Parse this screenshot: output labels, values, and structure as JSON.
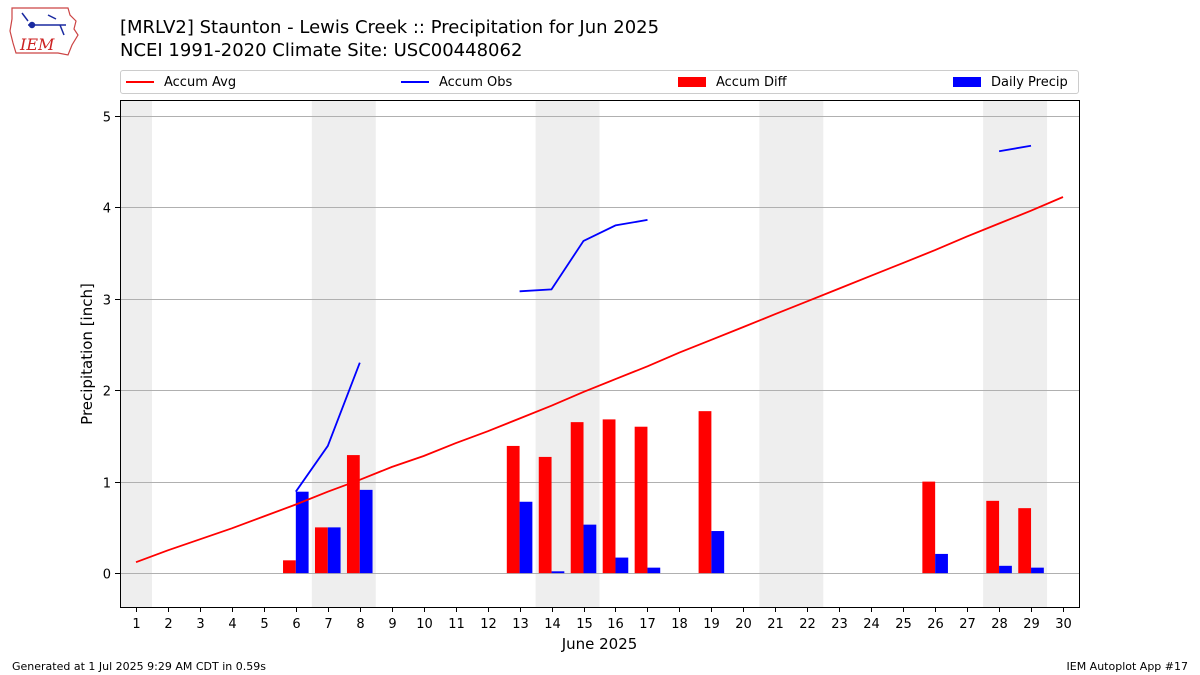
{
  "logo": {
    "text": "IEM"
  },
  "header": {
    "title": "[MRLV2] Staunton - Lewis Creek :: Precipitation for Jun 2025",
    "subtitle": "NCEI 1991-2020 Climate Site: USC00448062"
  },
  "legend": {
    "items": [
      {
        "label": "Accum Avg",
        "kind": "line",
        "color": "#ff0000"
      },
      {
        "label": "Accum Obs",
        "kind": "line",
        "color": "#0000ff"
      },
      {
        "label": "Accum Diff",
        "kind": "patch",
        "color": "#ff0000"
      },
      {
        "label": "Daily Precip",
        "kind": "patch",
        "color": "#0000ff"
      }
    ]
  },
  "chart_data": {
    "type": "bar",
    "xlabel": "June 2025",
    "ylabel": "Precipitation [inch]",
    "ylim": [
      -0.37,
      5.17
    ],
    "xlim": [
      0.5,
      30.5
    ],
    "yticks": [
      0,
      1,
      2,
      3,
      4,
      5
    ],
    "x": [
      1,
      2,
      3,
      4,
      5,
      6,
      7,
      8,
      9,
      10,
      11,
      12,
      13,
      14,
      15,
      16,
      17,
      18,
      19,
      20,
      21,
      22,
      23,
      24,
      25,
      26,
      27,
      28,
      29,
      30
    ],
    "weekend_shading": [
      [
        0.5,
        1.5
      ],
      [
        6.5,
        8.5
      ],
      [
        13.5,
        15.5
      ],
      [
        20.5,
        22.5
      ],
      [
        27.5,
        29.5
      ]
    ],
    "grid": true,
    "colors": {
      "accum_avg": "#ff0000",
      "accum_obs": "#0000ff",
      "accum_diff": "#ff0000",
      "daily_precip": "#0000ff",
      "shading": "#eeeeee"
    },
    "series": [
      {
        "name": "Accum Avg",
        "type": "line",
        "values": [
          0.12,
          0.25,
          0.37,
          0.49,
          0.62,
          0.75,
          0.89,
          1.02,
          1.16,
          1.28,
          1.42,
          1.55,
          1.69,
          1.83,
          1.98,
          2.12,
          2.26,
          2.41,
          2.55,
          2.69,
          2.83,
          2.97,
          3.11,
          3.25,
          3.39,
          3.53,
          3.68,
          3.82,
          3.96,
          4.11
        ]
      },
      {
        "name": "Accum Obs",
        "type": "line",
        "values": [
          null,
          null,
          null,
          null,
          null,
          0.89,
          1.39,
          2.3,
          null,
          null,
          null,
          null,
          3.08,
          3.1,
          3.63,
          3.8,
          3.86,
          null,
          null,
          null,
          null,
          null,
          null,
          null,
          null,
          null,
          null,
          4.61,
          4.67,
          null
        ]
      },
      {
        "name": "Accum Diff",
        "type": "bar",
        "values": [
          0,
          0,
          0,
          0,
          0,
          0.14,
          0.5,
          1.29,
          0,
          0,
          0,
          0,
          1.39,
          1.27,
          1.65,
          1.68,
          1.6,
          0,
          1.77,
          0,
          0,
          0,
          0,
          0,
          0,
          1.0,
          0,
          0.79,
          0.71,
          0
        ]
      },
      {
        "name": "Daily Precip",
        "type": "bar",
        "values": [
          0,
          0,
          0,
          0,
          0,
          0.89,
          0.5,
          0.91,
          0,
          0,
          0,
          0,
          0.78,
          0.02,
          0.53,
          0.17,
          0.06,
          0,
          0.46,
          0,
          0,
          0,
          0,
          0,
          0,
          0.21,
          0,
          0.08,
          0.06,
          0
        ]
      }
    ]
  },
  "footer": {
    "left": "Generated at 1 Jul 2025 9:29 AM CDT in 0.59s",
    "right": "IEM Autoplot App #17"
  }
}
